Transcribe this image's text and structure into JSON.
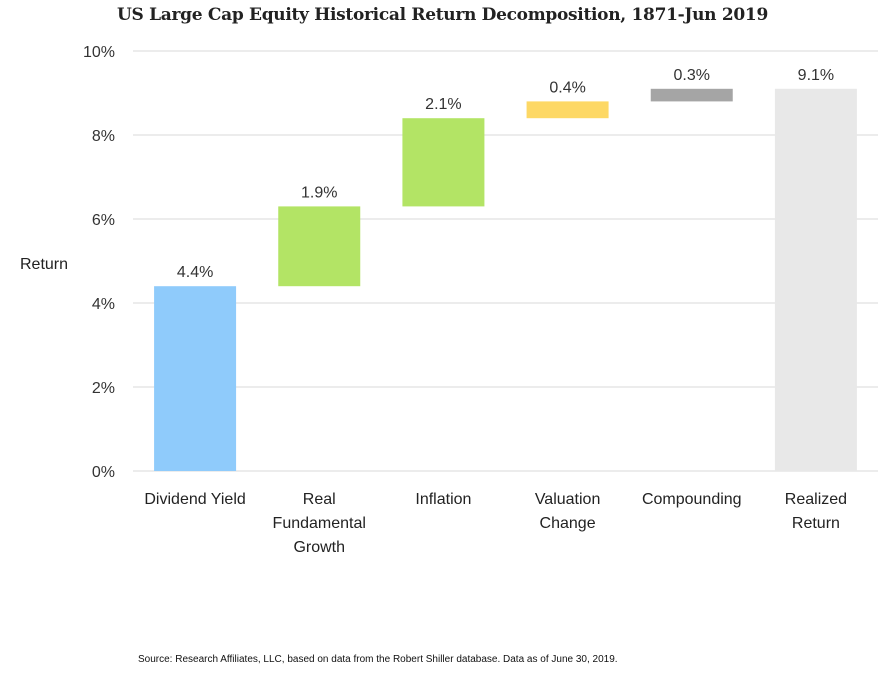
{
  "chart_data": {
    "type": "waterfall",
    "title": "US Large Cap Equity Historical Return Decomposition, 1871-Jun 2019",
    "ylabel": "Return",
    "xlabel": "",
    "ylim": [
      0,
      10
    ],
    "yticks": [
      0,
      2,
      4,
      6,
      8,
      10
    ],
    "ytick_labels": [
      "0%",
      "2%",
      "4%",
      "6%",
      "8%",
      "10%"
    ],
    "grid": true,
    "categories": [
      [
        "Dividend Yield"
      ],
      [
        "Real",
        "Fundamental",
        "Growth"
      ],
      [
        "Inflation"
      ],
      [
        "Valuation",
        "Change"
      ],
      [
        "Compounding"
      ],
      [
        "Realized",
        "Return"
      ]
    ],
    "bars": [
      {
        "name": "Dividend Yield",
        "start": 0,
        "end": 4.4,
        "label": "4.4%",
        "color": "#8FCBFB"
      },
      {
        "name": "Real Fundamental Growth",
        "start": 4.4,
        "end": 6.3,
        "label": "1.9%",
        "color": "#B3E465"
      },
      {
        "name": "Inflation",
        "start": 6.3,
        "end": 8.4,
        "label": "2.1%",
        "color": "#B3E465"
      },
      {
        "name": "Valuation Change",
        "start": 8.4,
        "end": 8.8,
        "label": "0.4%",
        "color": "#FDD865"
      },
      {
        "name": "Compounding",
        "start": 8.8,
        "end": 9.1,
        "label": "0.3%",
        "color": "#A5A5A5"
      },
      {
        "name": "Realized Return",
        "start": 0,
        "end": 9.1,
        "label": "9.1%",
        "color": "#E8E8E8"
      }
    ]
  },
  "source": "Source: Research Affiliates, LLC, based on data from the Robert Shiller database. Data as of June 30, 2019."
}
